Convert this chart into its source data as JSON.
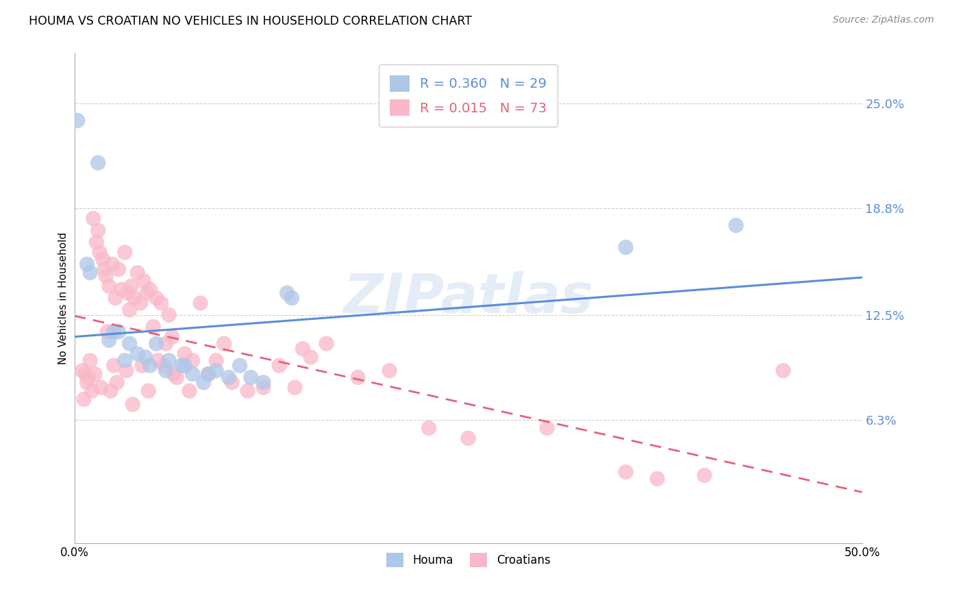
{
  "title": "HOUMA VS CROATIAN NO VEHICLES IN HOUSEHOLD CORRELATION CHART",
  "source": "Source: ZipAtlas.com",
  "ylabel": "No Vehicles in Household",
  "ytick_values": [
    6.3,
    12.5,
    18.8,
    25.0
  ],
  "xlim": [
    0.0,
    50.0
  ],
  "ylim": [
    -1.0,
    28.0
  ],
  "houma_R": 0.36,
  "houma_N": 29,
  "croatian_R": 0.015,
  "croatian_N": 73,
  "houma_color": "#aec6e8",
  "houma_line_color": "#5b8dd9",
  "croatian_color": "#f9b8c8",
  "croatian_line_color": "#e8607a",
  "watermark": "ZIPatlas",
  "houma_scatter_x": [
    0.2,
    1.5,
    0.8,
    2.2,
    2.8,
    3.5,
    4.0,
    4.8,
    5.2,
    6.0,
    6.8,
    7.5,
    8.2,
    9.0,
    9.8,
    10.5,
    11.2,
    12.0,
    2.5,
    3.2,
    4.5,
    5.8,
    7.0,
    8.5,
    13.5,
    13.8,
    35.0,
    42.0,
    1.0
  ],
  "houma_scatter_y": [
    24.0,
    21.5,
    15.5,
    11.0,
    11.5,
    10.8,
    10.2,
    9.5,
    10.8,
    9.8,
    9.5,
    9.0,
    8.5,
    9.2,
    8.8,
    9.5,
    8.8,
    8.5,
    11.5,
    9.8,
    10.0,
    9.2,
    9.5,
    9.0,
    13.8,
    13.5,
    16.5,
    17.8,
    15.0
  ],
  "croatian_scatter_x": [
    0.5,
    0.8,
    1.0,
    1.2,
    1.4,
    1.5,
    1.6,
    1.8,
    1.9,
    2.0,
    2.1,
    2.2,
    2.4,
    2.6,
    2.8,
    3.0,
    3.2,
    3.4,
    3.5,
    3.6,
    3.8,
    4.0,
    4.2,
    4.4,
    4.6,
    4.8,
    5.0,
    5.2,
    5.5,
    5.8,
    6.0,
    6.2,
    6.5,
    7.0,
    7.5,
    8.0,
    8.5,
    9.0,
    10.0,
    11.0,
    12.0,
    13.0,
    14.0,
    15.0,
    16.0,
    18.0,
    20.0,
    22.5,
    25.0,
    30.0,
    35.0,
    37.0,
    40.0,
    0.9,
    1.3,
    2.3,
    3.3,
    4.3,
    5.3,
    6.3,
    7.3,
    0.7,
    1.7,
    2.7,
    3.7,
    4.7,
    5.7,
    0.6,
    1.1,
    2.5,
    9.5,
    14.5,
    45.0
  ],
  "croatian_scatter_y": [
    9.2,
    8.5,
    9.8,
    18.2,
    16.8,
    17.5,
    16.2,
    15.8,
    15.2,
    14.8,
    11.5,
    14.2,
    15.5,
    13.5,
    15.2,
    14.0,
    16.2,
    13.8,
    12.8,
    14.2,
    13.5,
    15.0,
    13.2,
    14.5,
    13.8,
    14.0,
    11.8,
    13.5,
    13.2,
    10.8,
    12.5,
    11.2,
    8.8,
    10.2,
    9.8,
    13.2,
    9.0,
    9.8,
    8.5,
    8.0,
    8.2,
    9.5,
    8.2,
    10.0,
    10.8,
    8.8,
    9.2,
    5.8,
    5.2,
    5.8,
    3.2,
    2.8,
    3.0,
    8.8,
    9.0,
    8.0,
    9.2,
    9.5,
    9.8,
    9.0,
    8.0,
    9.0,
    8.2,
    8.5,
    7.2,
    8.0,
    9.5,
    7.5,
    8.0,
    9.5,
    10.8,
    10.5,
    9.2
  ]
}
